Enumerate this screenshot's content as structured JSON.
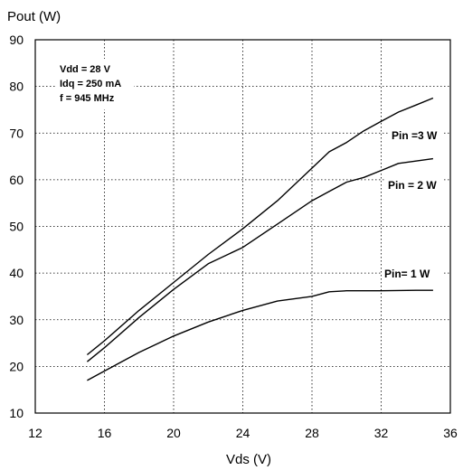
{
  "chart_data": {
    "type": "line",
    "ylabel": "Pout (W)",
    "xlabel": "Vds (V)",
    "xlim": [
      12,
      36
    ],
    "ylim": [
      10,
      90
    ],
    "xticks": [
      12,
      16,
      20,
      24,
      28,
      32,
      36
    ],
    "yticks": [
      10,
      20,
      30,
      40,
      50,
      60,
      70,
      80,
      90
    ],
    "grid": true,
    "annotations": [
      "Vdd = 28 V",
      "Idq = 250 mA",
      "f = 945 MHz"
    ],
    "series": [
      {
        "name": "Pin =3 W",
        "x": [
          15,
          16,
          18,
          20,
          22,
          24,
          26,
          28,
          29,
          30,
          31,
          32,
          33,
          34,
          35
        ],
        "y": [
          22.5,
          25.5,
          32,
          38,
          44,
          49.5,
          55.5,
          62.5,
          66,
          68,
          70.5,
          72.5,
          74.5,
          76,
          77.5
        ]
      },
      {
        "name": "Pin = 2 W",
        "x": [
          15,
          16,
          18,
          20,
          22,
          24,
          26,
          28,
          29,
          30,
          31,
          32,
          33,
          34,
          35
        ],
        "y": [
          21,
          24,
          30.5,
          36.5,
          42,
          45.5,
          50.5,
          55.5,
          57.5,
          59.5,
          60.5,
          62,
          63.5,
          64,
          64.5
        ],
        "label_value": "Pin = 2 W"
      },
      {
        "name": "Pin= 1 W",
        "x": [
          15,
          16,
          18,
          20,
          22,
          24,
          26,
          28,
          29,
          30,
          32,
          34,
          35
        ],
        "y": [
          17,
          19,
          23,
          26.5,
          29.5,
          32,
          34,
          35,
          36,
          36.2,
          36.2,
          36.3,
          36.3
        ]
      }
    ]
  }
}
